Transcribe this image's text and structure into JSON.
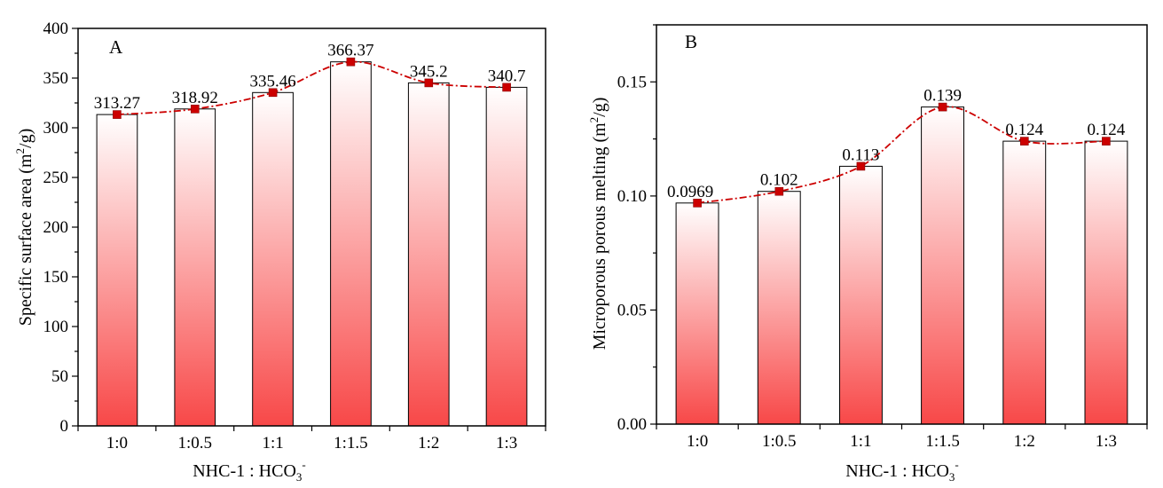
{
  "charts": [
    {
      "panel_label": "A",
      "ylabel": {
        "main": "Specific surface area (m",
        "sup": "2",
        "tail": "/g)"
      },
      "xlabel": {
        "main": "NHC-1 : HCO",
        "sub": "3",
        "sup": "-"
      },
      "ytick_labels": [
        "0",
        "50",
        "100",
        "150",
        "200",
        "250",
        "300",
        "350",
        "400"
      ],
      "data_labels": [
        "313.27",
        "318.92",
        "335.46",
        "366.37",
        "345.2",
        "340.7"
      ]
    },
    {
      "panel_label": "B",
      "ylabel": {
        "main": "Microporous porous melting (m",
        "sup": "2",
        "tail": "/g)"
      },
      "xlabel": {
        "main": "NHC-1 : HCO",
        "sub": "3",
        "sup": "-"
      },
      "ytick_labels": [
        "0.00",
        "0.05",
        "0.10",
        "0.15"
      ],
      "data_labels": [
        "0.0969",
        "0.102",
        "0.113",
        "0.139",
        "0.124",
        "0.124"
      ]
    }
  ],
  "chart_data": [
    {
      "type": "bar",
      "categories": [
        "1:0",
        "1:0.5",
        "1:1",
        "1:1.5",
        "1:2",
        "1:3"
      ],
      "values": [
        313.27,
        318.92,
        335.46,
        366.37,
        345.2,
        340.7
      ],
      "overlay": "line-with-square-markers",
      "title": "",
      "xlabel": "NHC-1 : HCO3-",
      "ylabel": "Specific surface area (m2/g)",
      "ylim": [
        0,
        400
      ],
      "yticks": [
        0,
        50,
        100,
        150,
        200,
        250,
        300,
        350,
        400
      ],
      "grid": false,
      "legend": "none"
    },
    {
      "type": "bar",
      "categories": [
        "1:0",
        "1:0.5",
        "1:1",
        "1:1.5",
        "1:2",
        "1:3"
      ],
      "values": [
        0.0969,
        0.102,
        0.113,
        0.139,
        0.124,
        0.124
      ],
      "overlay": "line-with-square-markers",
      "title": "",
      "xlabel": "NHC-1 : HCO3-",
      "ylabel": "Microporous porous melting (m2/g)",
      "ylim": [
        0,
        0.175
      ],
      "yticks": [
        0,
        0.05,
        0.1,
        0.15
      ],
      "grid": false,
      "legend": "none"
    }
  ],
  "colors": {
    "bar_gradient_top": "#ffffff",
    "bar_gradient_bottom": "#f84848",
    "bar_outline": "#000000",
    "line": "#cc0000",
    "marker": "#cc0000"
  }
}
